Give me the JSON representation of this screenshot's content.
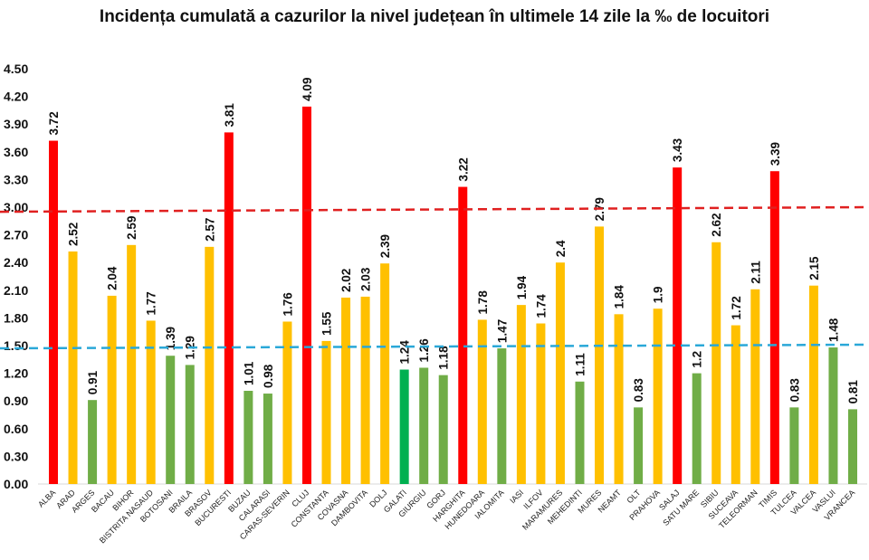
{
  "chart_data": {
    "type": "bar",
    "title": "Incidența cumulată a cazurilor la nivel județean în ultimele 14 zile la ‰ de locuitori",
    "xlabel": "",
    "ylabel": "",
    "ylim": [
      0,
      4.5
    ],
    "yticks": [
      "0.00",
      "0.30",
      "0.60",
      "0.90",
      "1.20",
      "1.50",
      "1.80",
      "2.10",
      "2.40",
      "2.70",
      "3.00",
      "3.30",
      "3.60",
      "3.90",
      "4.20",
      "4.50"
    ],
    "grid": false,
    "categories": [
      "ALBA",
      "ARAD",
      "ARGES",
      "BACAU",
      "BIHOR",
      "BISTRITA NASAUD",
      "BOTOSANI",
      "BRAILA",
      "BRASOV",
      "BUCURESTI",
      "BUZAU",
      "CALARASI",
      "CARAS-SEVERIN",
      "CLUJ",
      "CONSTANTA",
      "COVASNA",
      "DAMBOVITA",
      "DOLJ",
      "GALATI",
      "GIURGIU",
      "GORJ",
      "HARGHITA",
      "HUNEDOARA",
      "IALOMITA",
      "IASI",
      "ILFOV",
      "MARAMURES",
      "MEHEDINTI",
      "MURES",
      "NEAMT",
      "OLT",
      "PRAHOVA",
      "SALAJ",
      "SATU MARE",
      "SIBIU",
      "SUCEAVA",
      "TELEORMAN",
      "TIMIS",
      "TULCEA",
      "VALCEA",
      "VASLUI",
      "VRANCEA"
    ],
    "values": [
      3.72,
      2.52,
      0.91,
      2.04,
      2.59,
      1.77,
      1.39,
      1.29,
      2.57,
      3.81,
      1.01,
      0.98,
      1.76,
      4.09,
      1.55,
      2.02,
      2.03,
      2.39,
      1.24,
      1.26,
      1.18,
      3.22,
      1.78,
      1.47,
      1.94,
      1.74,
      2.4,
      1.11,
      2.79,
      1.84,
      0.83,
      1.9,
      3.43,
      1.2,
      2.62,
      1.72,
      2.11,
      3.39,
      0.83,
      2.15,
      1.48,
      0.81
    ],
    "value_labels": [
      "3.72",
      "2.52",
      "0.91",
      "2.04",
      "2.59",
      "1.77",
      "1.39",
      "1.29",
      "2.57",
      "3.81",
      "1.01",
      "0.98",
      "1.76",
      "4.09",
      "1.55",
      "2.02",
      "2.03",
      "2.39",
      "1.24",
      "1.26",
      "1.18",
      "3.22",
      "1.78",
      "1.47",
      "1.94",
      "1.74",
      "2.4",
      "1.11",
      "2.79",
      "1.84",
      "0.83",
      "1.9",
      "3.43",
      "1.2",
      "2.62",
      "1.72",
      "2.11",
      "3.39",
      "0.83",
      "2.15",
      "1.48",
      "0.81"
    ],
    "colors": {
      "high": "#ff0000",
      "medium": "#ffc000",
      "low": "#70ad47",
      "galati": "#00b050"
    },
    "reference_lines": [
      {
        "color": "#e02020",
        "style": "dashed",
        "y_start": 2.95,
        "y_end": 3.0
      },
      {
        "color": "#2aa8d8",
        "style": "dashed",
        "y_start": 1.47,
        "y_end": 1.51
      }
    ]
  }
}
